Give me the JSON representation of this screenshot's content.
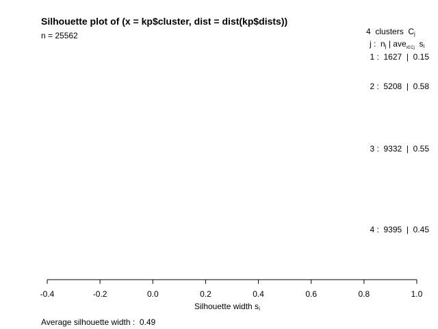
{
  "chart_data": {
    "type": "bar",
    "title": "Silhouette plot of (x = kp$cluster, dist = dist(kp$dists))",
    "n_label": "n = 25562",
    "legend_header": {
      "count_text": "4",
      "clusters_word": "clusters",
      "symbol": "C",
      "symbol_sub": "j"
    },
    "legend_subheader": {
      "j_text": "j :",
      "n_text": "n",
      "n_sub": "j",
      "sep": "| ave",
      "ave_sub": "i∈Cj",
      "s_text": "s",
      "s_sub": "i"
    },
    "clusters": [
      {
        "id": 1,
        "label": "1 :",
        "n": "1627",
        "sep": "|",
        "avg": "0.15"
      },
      {
        "id": 2,
        "label": "2 :",
        "n": "5208",
        "sep": "|",
        "avg": "0.58"
      },
      {
        "id": 3,
        "label": "3 :",
        "n": "9332",
        "sep": "|",
        "avg": "0.55"
      },
      {
        "id": 4,
        "label": "4 :",
        "n": "9395",
        "sep": "|",
        "avg": "0.45"
      }
    ],
    "xlabel_text": "Silhouette width s",
    "xlabel_sub": "i",
    "xlim": [
      -0.4,
      1.0
    ],
    "xticks": [
      "-0.4",
      "-0.2",
      "0.0",
      "0.2",
      "0.4",
      "0.6",
      "0.8",
      "1.0"
    ],
    "average_label": "Average silhouette width :",
    "average_value": "0.49"
  }
}
